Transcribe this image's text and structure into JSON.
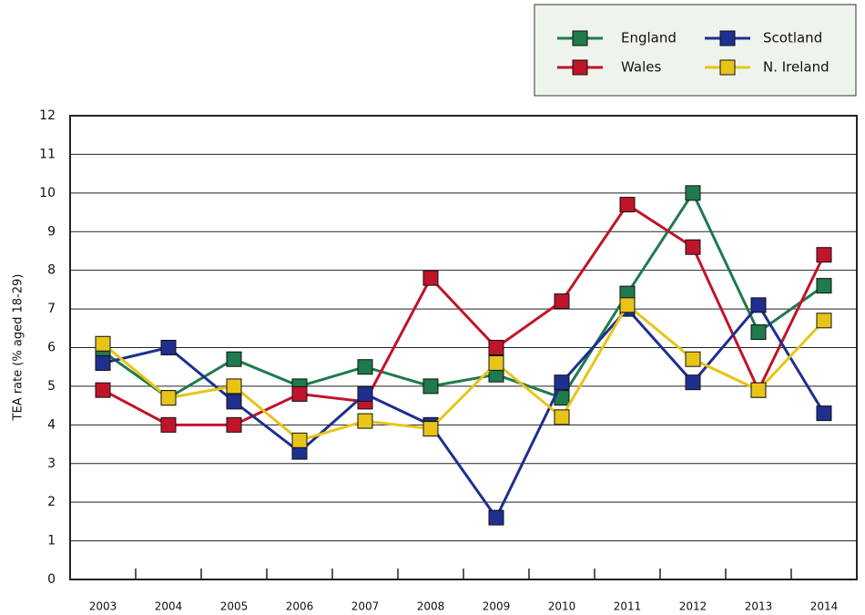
{
  "chart_data": {
    "type": "line",
    "y_label": "TEA rate (% aged 18-29)",
    "categories": [
      "2003",
      "2004",
      "2005",
      "2006",
      "2007",
      "2008",
      "2009",
      "2010",
      "2011",
      "2012",
      "2013",
      "2014"
    ],
    "series": [
      {
        "name": "England",
        "color": "#1f7a4d",
        "values": [
          5.9,
          4.7,
          5.7,
          5.0,
          5.5,
          5.0,
          5.3,
          4.7,
          7.4,
          10.0,
          6.4,
          7.6
        ]
      },
      {
        "name": "Wales",
        "color": "#c0142a",
        "values": [
          4.9,
          4.0,
          4.0,
          4.8,
          4.6,
          7.8,
          6.0,
          7.2,
          9.7,
          8.6,
          4.9,
          8.4
        ]
      },
      {
        "name": "Scotland",
        "color": "#1e2f8f",
        "values": [
          5.6,
          6.0,
          4.6,
          3.3,
          4.8,
          4.0,
          1.6,
          5.1,
          7.0,
          5.1,
          7.1,
          4.3
        ]
      },
      {
        "name": "N. Ireland",
        "color": "#e8c418",
        "values": [
          6.1,
          4.7,
          5.0,
          3.6,
          4.1,
          3.9,
          5.6,
          4.2,
          7.1,
          5.7,
          4.9,
          6.7
        ]
      }
    ],
    "ylim": [
      0,
      12
    ],
    "yticks": [
      0,
      1,
      2,
      3,
      4,
      5,
      6,
      7,
      8,
      9,
      10,
      11,
      12
    ],
    "grid": true
  }
}
